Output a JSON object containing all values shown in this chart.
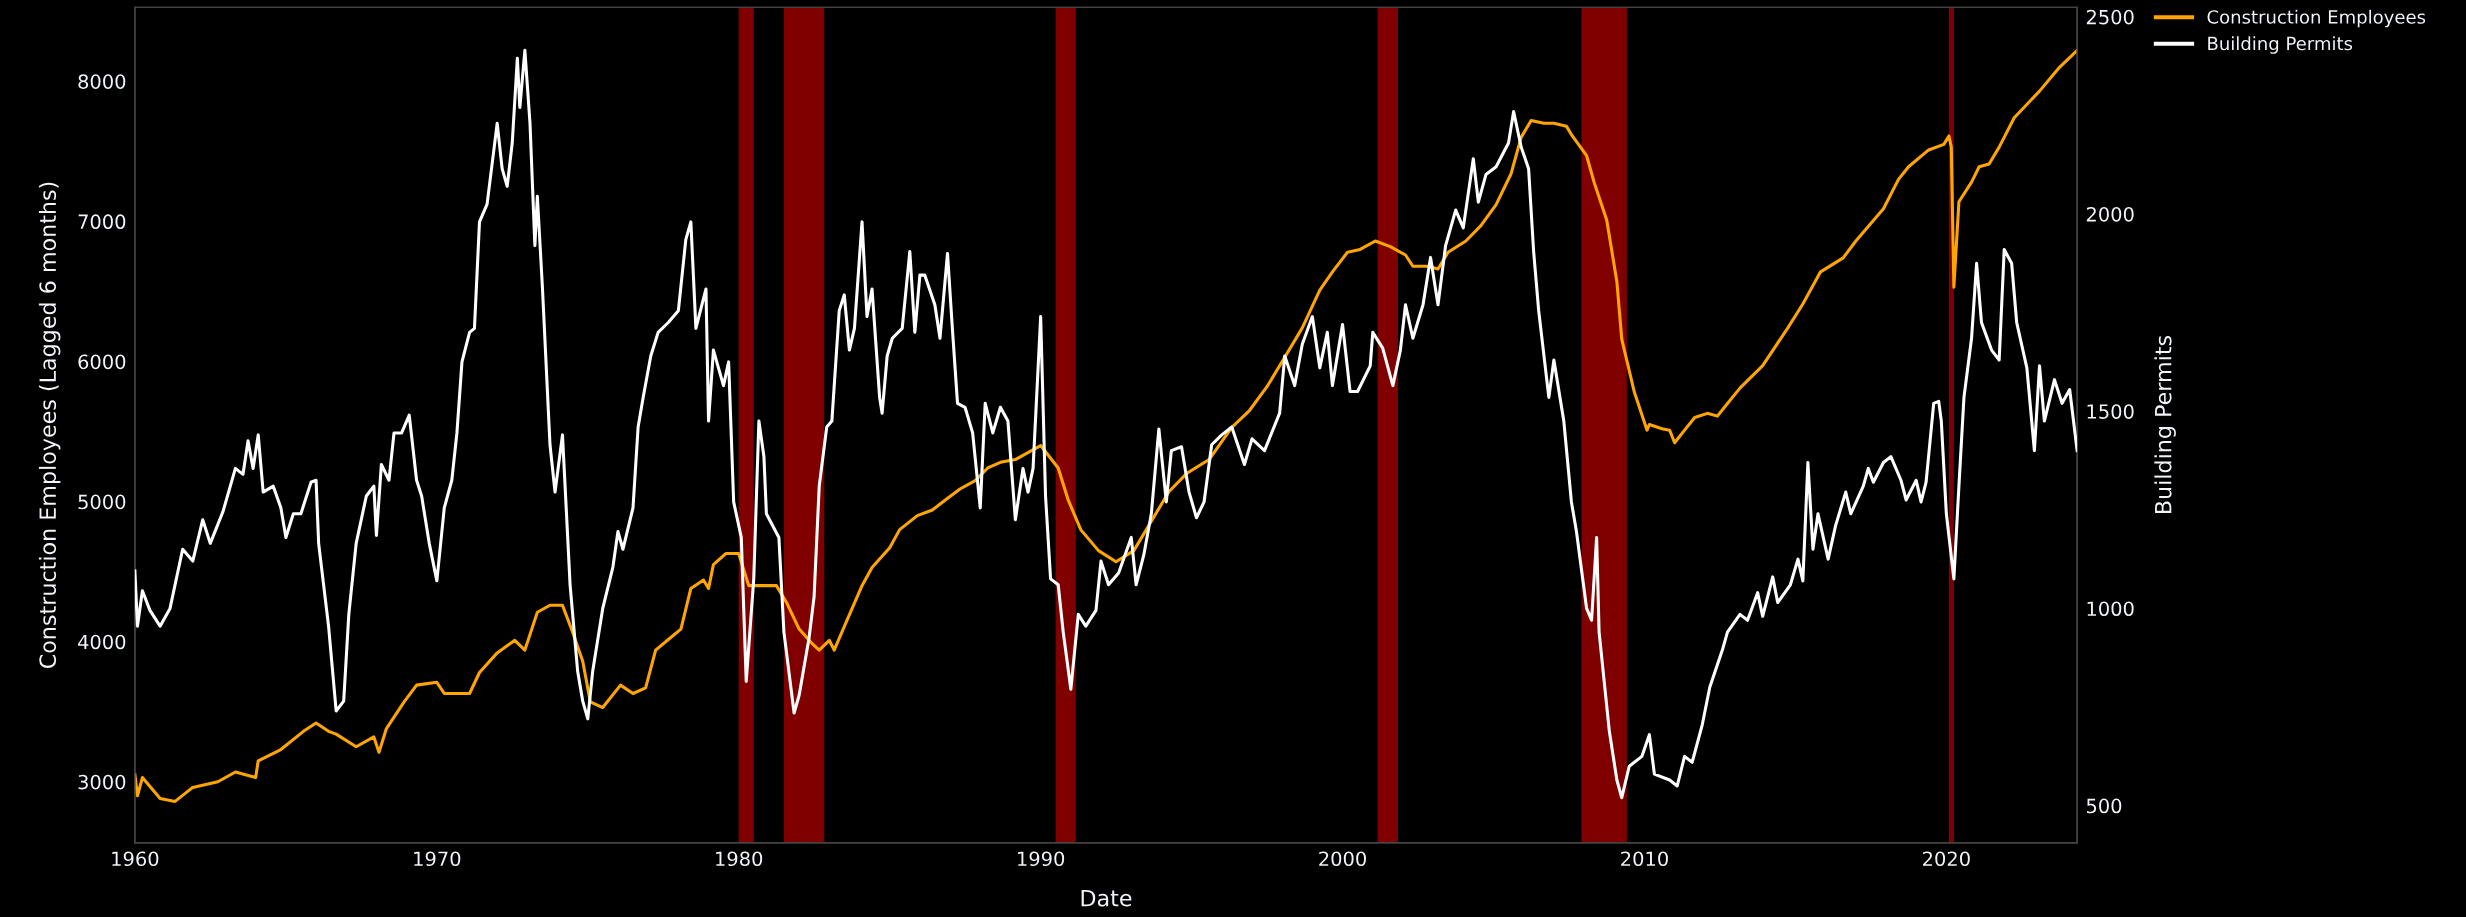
{
  "chart_data": {
    "type": "line",
    "xlabel": "Date",
    "ylabel": "Construction Employees (Lagged 6 months)",
    "y2label": "Building Permits",
    "xlim": [
      "1960-01",
      "2024-05"
    ],
    "xticks": [
      {
        "value": "1960-01",
        "label": "1960"
      },
      {
        "value": "1970-01",
        "label": "1970"
      },
      {
        "value": "1980-01",
        "label": "1980"
      },
      {
        "value": "1990-01",
        "label": "1990"
      },
      {
        "value": "2000-01",
        "label": "2000"
      },
      {
        "value": "2010-01",
        "label": "2010"
      },
      {
        "value": "2020-01",
        "label": "2020"
      }
    ],
    "ylim": [
      2565,
      8528
    ],
    "yticks": [
      3000,
      4000,
      5000,
      6000,
      7000,
      8000
    ],
    "y2lim": [
      406,
      2524
    ],
    "y2ticks": [
      500,
      1000,
      1500,
      2000,
      2500
    ],
    "grid": false,
    "legend": "top right",
    "bands": [
      {
        "axis": "x",
        "from": "1980-01",
        "to": "1980-07",
        "color": "#800000"
      },
      {
        "axis": "x",
        "from": "1981-07",
        "to": "1982-11",
        "color": "#800000"
      },
      {
        "axis": "x",
        "from": "1990-07",
        "to": "1991-03",
        "color": "#800000"
      },
      {
        "axis": "x",
        "from": "2001-03",
        "to": "2001-11",
        "color": "#800000"
      },
      {
        "axis": "x",
        "from": "2007-12",
        "to": "2009-06",
        "color": "#800000"
      },
      {
        "axis": "x",
        "from": "2020-02",
        "to": "2020-04",
        "color": "#800000"
      }
    ],
    "series": [
      {
        "name": "Construction Employees",
        "color": "#ffa500",
        "x": [
          "1960-01",
          "1960-02",
          "1960-04",
          "1960-11",
          "1961-05",
          "1961-12",
          "1962-10",
          "1963-05",
          "1964-01",
          "1964-02",
          "1964-11",
          "1965-08",
          "1966-01",
          "1966-06",
          "1966-09",
          "1967-05",
          "1967-12",
          "1968-02",
          "1968-05",
          "1968-12",
          "1969-05",
          "1970-01",
          "1970-04",
          "1971-02",
          "1971-06",
          "1972-01",
          "1972-08",
          "1972-12",
          "1973-05",
          "1973-10",
          "1974-03",
          "1974-07",
          "1974-11",
          "1975-02",
          "1975-07",
          "1976-02",
          "1976-07",
          "1976-12",
          "1977-04",
          "1977-10",
          "1978-02",
          "1978-06",
          "1978-11",
          "1979-01",
          "1979-03",
          "1979-08",
          "1980-01",
          "1980-05",
          "1980-10",
          "1981-04",
          "1981-08",
          "1982-01",
          "1982-06",
          "1982-09",
          "1983-01",
          "1983-03",
          "1983-08",
          "1984-02",
          "1984-06",
          "1985-01",
          "1985-05",
          "1985-12",
          "1986-06",
          "1986-11",
          "1987-05",
          "1987-11",
          "1988-04",
          "1988-09",
          "1989-03",
          "1989-09",
          "1990-01",
          "1990-08",
          "1990-12",
          "1991-05",
          "1991-12",
          "1992-07",
          "1993-02",
          "1993-09",
          "1994-04",
          "1994-11",
          "1995-08",
          "1996-05",
          "1996-12",
          "1997-07",
          "1998-02",
          "1998-09",
          "1999-04",
          "1999-09",
          "2000-03",
          "2000-08",
          "2001-02",
          "2001-08",
          "2002-02",
          "2002-05",
          "2002-11",
          "2003-03",
          "2003-07",
          "2004-02",
          "2004-08",
          "2005-02",
          "2005-08",
          "2005-12",
          "2006-04",
          "2006-09",
          "2007-01",
          "2007-06",
          "2007-08",
          "2008-02",
          "2008-05",
          "2008-10",
          "2009-02",
          "2009-04",
          "2009-09",
          "2010-02",
          "2010-03",
          "2010-08",
          "2010-11",
          "2011-01",
          "2011-05",
          "2011-09",
          "2012-02",
          "2012-06",
          "2012-10",
          "2013-03",
          "2013-12",
          "2014-10",
          "2015-04",
          "2015-11",
          "2016-08",
          "2017-01",
          "2017-12",
          "2018-06",
          "2018-10",
          "2019-06",
          "2019-12",
          "2020-02",
          "2020-03",
          "2020-04",
          "2020-06",
          "2020-11",
          "2021-02",
          "2021-06",
          "2021-10",
          "2022-04",
          "2023-02",
          "2023-10",
          "2024-05"
        ],
        "values": [
          3050,
          2900,
          3030,
          2880,
          2860,
          2960,
          3000,
          3070,
          3030,
          3150,
          3230,
          3360,
          3420,
          3360,
          3340,
          3250,
          3320,
          3210,
          3380,
          3570,
          3690,
          3710,
          3630,
          3630,
          3780,
          3920,
          4010,
          3940,
          4210,
          4260,
          4260,
          4070,
          3860,
          3570,
          3530,
          3690,
          3630,
          3670,
          3940,
          4030,
          4090,
          4380,
          4440,
          4380,
          4550,
          4630,
          4630,
          4400,
          4400,
          4400,
          4280,
          4090,
          3990,
          3940,
          4010,
          3940,
          4150,
          4400,
          4530,
          4670,
          4800,
          4900,
          4940,
          5010,
          5090,
          5150,
          5240,
          5280,
          5300,
          5360,
          5400,
          5240,
          5010,
          4800,
          4650,
          4570,
          4650,
          4860,
          5070,
          5200,
          5300,
          5530,
          5650,
          5820,
          6030,
          6240,
          6510,
          6640,
          6780,
          6800,
          6860,
          6820,
          6760,
          6680,
          6680,
          6660,
          6780,
          6860,
          6970,
          7120,
          7340,
          7600,
          7720,
          7700,
          7700,
          7680,
          7620,
          7470,
          7280,
          7010,
          6570,
          6160,
          5780,
          5510,
          5550,
          5520,
          5510,
          5420,
          5510,
          5600,
          5630,
          5610,
          5700,
          5810,
          5970,
          6240,
          6410,
          6640,
          6740,
          6860,
          7090,
          7300,
          7390,
          7510,
          7550,
          7610,
          7530,
          6530,
          7140,
          7280,
          7390,
          7410,
          7530,
          7740,
          7930,
          8100,
          8220
        ]
      },
      {
        "name": "Building Permits",
        "color": "#ffffff",
        "axis": "y2",
        "x": [
          "1960-01",
          "1960-02",
          "1960-04",
          "1960-07",
          "1960-11",
          "1961-03",
          "1961-08",
          "1961-12",
          "1962-04",
          "1962-07",
          "1962-12",
          "1963-05",
          "1963-08",
          "1963-10",
          "1963-12",
          "1964-02",
          "1964-04",
          "1964-08",
          "1964-11",
          "1965-01",
          "1965-04",
          "1965-07",
          "1965-11",
          "1966-01",
          "1966-02",
          "1966-06",
          "1966-09",
          "1966-12",
          "1967-02",
          "1967-05",
          "1967-09",
          "1967-12",
          "1968-01",
          "1968-03",
          "1968-06",
          "1968-08",
          "1968-11",
          "1969-02",
          "1969-05",
          "1969-07",
          "1969-10",
          "1970-01",
          "1970-04",
          "1970-07",
          "1970-09",
          "1970-11",
          "1971-02",
          "1971-04",
          "1971-06",
          "1971-09",
          "1972-01",
          "1972-03",
          "1972-05",
          "1972-07",
          "1972-09",
          "1972-10",
          "1972-12",
          "1973-02",
          "1973-04",
          "1973-05",
          "1973-07",
          "1973-10",
          "1973-12",
          "1974-03",
          "1974-06",
          "1974-09",
          "1974-11",
          "1975-01",
          "1975-03",
          "1975-07",
          "1975-11",
          "1976-01",
          "1976-03",
          "1976-07",
          "1976-09",
          "1976-11",
          "1977-02",
          "1977-05",
          "1977-09",
          "1978-01",
          "1978-04",
          "1978-06",
          "1978-08",
          "1978-12",
          "1979-01",
          "1979-03",
          "1979-07",
          "1979-09",
          "1979-11",
          "1980-02",
          "1980-04",
          "1980-07",
          "1980-09",
          "1980-11",
          "1980-12",
          "1981-05",
          "1981-07",
          "1981-11",
          "1982-01",
          "1982-05",
          "1982-07",
          "1982-09",
          "1982-12",
          "1983-02",
          "1983-05",
          "1983-07",
          "1983-09",
          "1983-11",
          "1984-02",
          "1984-04",
          "1984-06",
          "1984-09",
          "1984-10",
          "1984-12",
          "1985-02",
          "1985-06",
          "1985-09",
          "1985-11",
          "1986-01",
          "1986-03",
          "1986-07",
          "1986-09",
          "1986-12",
          "1987-02",
          "1987-04",
          "1987-07",
          "1987-10",
          "1988-01",
          "1988-03",
          "1988-06",
          "1988-09",
          "1988-12",
          "1989-03",
          "1989-06",
          "1989-08",
          "1989-10",
          "1990-01",
          "1990-03",
          "1990-05",
          "1990-08",
          "1990-10",
          "1991-01",
          "1991-04",
          "1991-07",
          "1991-11",
          "1992-01",
          "1992-04",
          "1992-08",
          "1993-01",
          "1993-03",
          "1993-06",
          "1993-09",
          "1993-12",
          "1994-03",
          "1994-05",
          "1994-09",
          "1994-12",
          "1995-03",
          "1995-06",
          "1995-09",
          "1996-01",
          "1996-05",
          "1996-10",
          "1997-01",
          "1997-06",
          "1997-12",
          "1998-02",
          "1998-06",
          "1998-09",
          "1999-01",
          "1999-04",
          "1999-07",
          "1999-09",
          "2000-01",
          "2000-04",
          "2000-07",
          "2000-12",
          "2001-01",
          "2001-05",
          "2001-09",
          "2001-12",
          "2002-02",
          "2002-05",
          "2002-09",
          "2002-12",
          "2003-03",
          "2003-06",
          "2003-10",
          "2004-01",
          "2004-05",
          "2004-07",
          "2004-10",
          "2005-02",
          "2005-07",
          "2005-09",
          "2005-12",
          "2006-03",
          "2006-05",
          "2006-07",
          "2006-11",
          "2007-01",
          "2007-05",
          "2007-08",
          "2007-10",
          "2008-02",
          "2008-04",
          "2008-06",
          "2008-07",
          "2008-11",
          "2009-02",
          "2009-04",
          "2009-07",
          "2009-12",
          "2010-03",
          "2010-05",
          "2010-11",
          "2011-02",
          "2011-05",
          "2011-08",
          "2011-12",
          "2012-03",
          "2012-08",
          "2012-10",
          "2013-03",
          "2013-06",
          "2013-10",
          "2013-12",
          "2014-04",
          "2014-06",
          "2014-11",
          "2015-02",
          "2015-04",
          "2015-06",
          "2015-08",
          "2015-10",
          "2016-02",
          "2016-05",
          "2016-09",
          "2016-11",
          "2017-04",
          "2017-06",
          "2017-08",
          "2017-12",
          "2018-03",
          "2018-07",
          "2018-09",
          "2019-01",
          "2019-03",
          "2019-05",
          "2019-08",
          "2019-10",
          "2019-11",
          "2020-01",
          "2020-04",
          "2020-06",
          "2020-08",
          "2020-11",
          "2021-01",
          "2021-03",
          "2021-07",
          "2021-10",
          "2021-12",
          "2022-03",
          "2022-05",
          "2022-09",
          "2022-12",
          "2023-02",
          "2023-04",
          "2023-08",
          "2023-11",
          "2024-02",
          "2024-05"
        ],
        "values": [
          1095,
          955,
          1045,
          995,
          955,
          1000,
          1150,
          1120,
          1225,
          1165,
          1245,
          1355,
          1340,
          1425,
          1355,
          1440,
          1295,
          1310,
          1255,
          1180,
          1240,
          1240,
          1320,
          1325,
          1165,
          955,
          740,
          765,
          985,
          1165,
          1285,
          1310,
          1185,
          1365,
          1325,
          1445,
          1445,
          1490,
          1325,
          1285,
          1165,
          1070,
          1255,
          1325,
          1445,
          1625,
          1700,
          1710,
          1980,
          2025,
          2230,
          2115,
          2070,
          2180,
          2395,
          2270,
          2415,
          2230,
          1920,
          2045,
          1815,
          1415,
          1295,
          1440,
          1060,
          840,
          765,
          720,
          840,
          1000,
          1105,
          1195,
          1150,
          1255,
          1460,
          1535,
          1640,
          1700,
          1725,
          1755,
          1935,
          1980,
          1710,
          1810,
          1475,
          1655,
          1565,
          1625,
          1270,
          1180,
          815,
          1075,
          1475,
          1385,
          1240,
          1180,
          940,
          735,
          780,
          925,
          1030,
          1310,
          1460,
          1475,
          1755,
          1795,
          1655,
          1710,
          1980,
          1740,
          1810,
          1535,
          1495,
          1640,
          1685,
          1710,
          1905,
          1700,
          1845,
          1845,
          1770,
          1685,
          1900,
          1700,
          1520,
          1510,
          1445,
          1255,
          1520,
          1445,
          1510,
          1475,
          1225,
          1355,
          1295,
          1355,
          1740,
          1285,
          1075,
          1060,
          940,
          795,
          985,
          955,
          995,
          1120,
          1060,
          1090,
          1180,
          1060,
          1135,
          1240,
          1455,
          1270,
          1400,
          1410,
          1295,
          1230,
          1270,
          1415,
          1440,
          1460,
          1365,
          1430,
          1400,
          1495,
          1640,
          1565,
          1670,
          1740,
          1610,
          1700,
          1565,
          1720,
          1550,
          1550,
          1615,
          1700,
          1660,
          1565,
          1655,
          1770,
          1685,
          1770,
          1890,
          1770,
          1920,
          2010,
          1965,
          2140,
          2030,
          2100,
          2120,
          2180,
          2260,
          2170,
          2115,
          1905,
          1755,
          1535,
          1630,
          1475,
          1270,
          1195,
          1000,
          970,
          1180,
          940,
          690,
          565,
          520,
          600,
          625,
          680,
          580,
          565,
          550,
          625,
          610,
          705,
          800,
          895,
          940,
          985,
          970,
          1040,
          980,
          1080,
          1015,
          1060,
          1125,
          1070,
          1370,
          1150,
          1240,
          1125,
          1210,
          1295,
          1240,
          1310,
          1355,
          1320,
          1370,
          1385,
          1325,
          1275,
          1325,
          1270,
          1320,
          1520,
          1525,
          1475,
          1240,
          1075,
          1310,
          1535,
          1685,
          1875,
          1725,
          1655,
          1630,
          1910,
          1875,
          1725,
          1610,
          1400,
          1615,
          1475,
          1580,
          1520,
          1555,
          1400
        ]
      }
    ]
  }
}
